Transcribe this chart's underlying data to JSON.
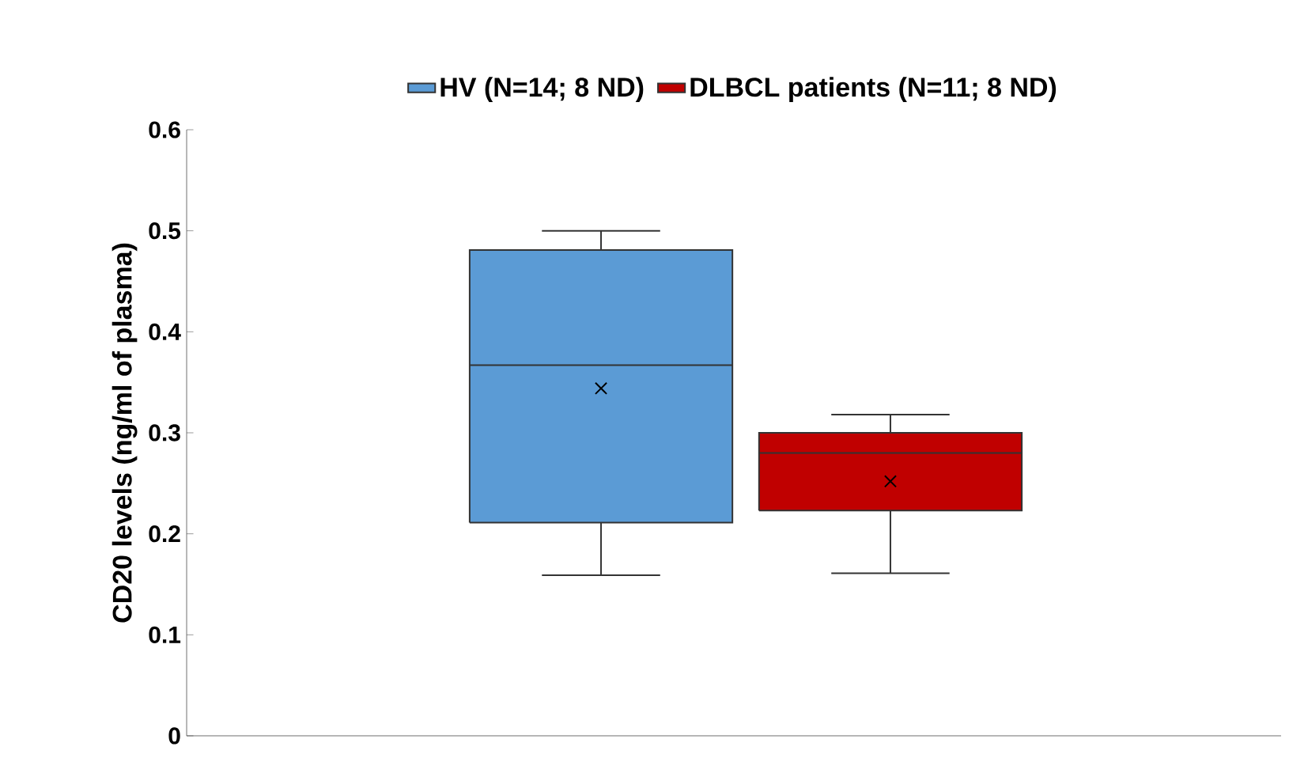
{
  "chart_data": {
    "type": "box",
    "ylabel": "CD20 levels (ng/ml of plasma)",
    "categories": [
      null
    ],
    "series": [
      {
        "name": "HV (N=14; 8 ND)",
        "color": "#5b9bd5",
        "boxes": [
          {
            "low": 0.159,
            "q1": 0.211,
            "median": 0.367,
            "q3": 0.481,
            "high": 0.5,
            "mean": 0.344
          }
        ]
      },
      {
        "name": "DLBCL patients (N=11; 8 ND)",
        "color": "#c00000",
        "boxes": [
          {
            "low": 0.161,
            "q1": 0.223,
            "median": 0.28,
            "q3": 0.3,
            "high": 0.318,
            "mean": 0.252
          }
        ]
      }
    ],
    "ylim": [
      0,
      0.6
    ],
    "yticks": [
      0,
      0.1,
      0.2,
      0.3,
      0.4,
      0.5,
      0.6
    ],
    "tick_labels": "y",
    "legend": "top",
    "marker": "cross"
  }
}
